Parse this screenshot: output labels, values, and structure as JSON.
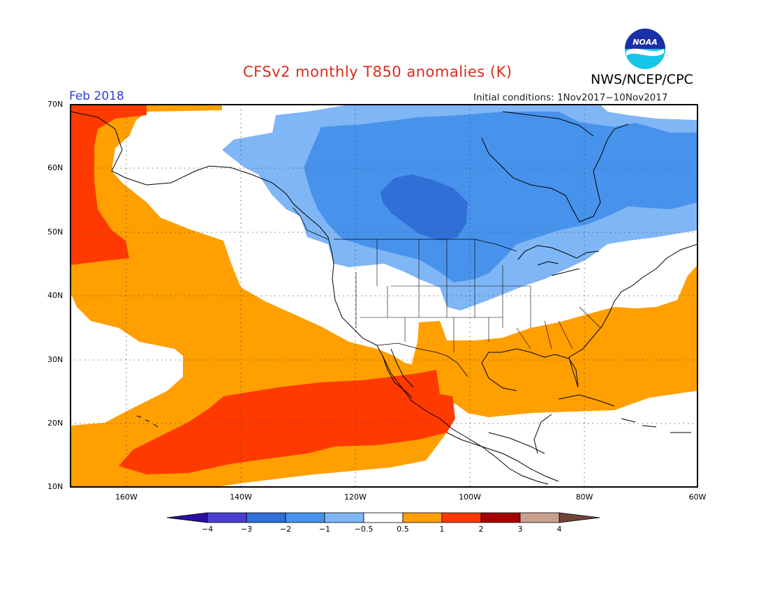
{
  "title": "CFSv2 monthly T850 anomalies (K)",
  "agency": "NWS/NCEP/CPC",
  "logo_text": "NOAA",
  "valid_label": "Feb 2018",
  "init_label": "Initial conditions: 1Nov2017−10Nov2017",
  "map": {
    "lon_range": [
      -172,
      -60
    ],
    "lat_range": [
      10,
      70
    ],
    "lat_labels": [
      "70N",
      "60N",
      "50N",
      "40N",
      "30N",
      "20N",
      "10N"
    ],
    "lon_labels": [
      "160W",
      "140W",
      "120W",
      "100W",
      "80W",
      "60W"
    ],
    "grid": "dotted"
  },
  "colorbar": {
    "colors": [
      "#2b0fa5",
      "#4a3fd0",
      "#2f6fd6",
      "#4793ec",
      "#7fb6f5",
      "#ffffff",
      "#ff9f00",
      "#ff3a00",
      "#a30000",
      "#c9a08e",
      "#70463a"
    ],
    "labels": [
      "−4",
      "−3",
      "−2",
      "−1",
      "−0.5",
      "0.5",
      "1",
      "2",
      "3",
      "4"
    ]
  },
  "anomaly_regions": [
    {
      "label": "0.5",
      "color": "#ff9f00"
    },
    {
      "label": "1",
      "color": "#ff3a00"
    },
    {
      "label": "−0.5",
      "color": "#7fb6f5"
    },
    {
      "label": "−1",
      "color": "#4793ec"
    },
    {
      "label": "−2",
      "color": "#2f6fd6"
    }
  ]
}
